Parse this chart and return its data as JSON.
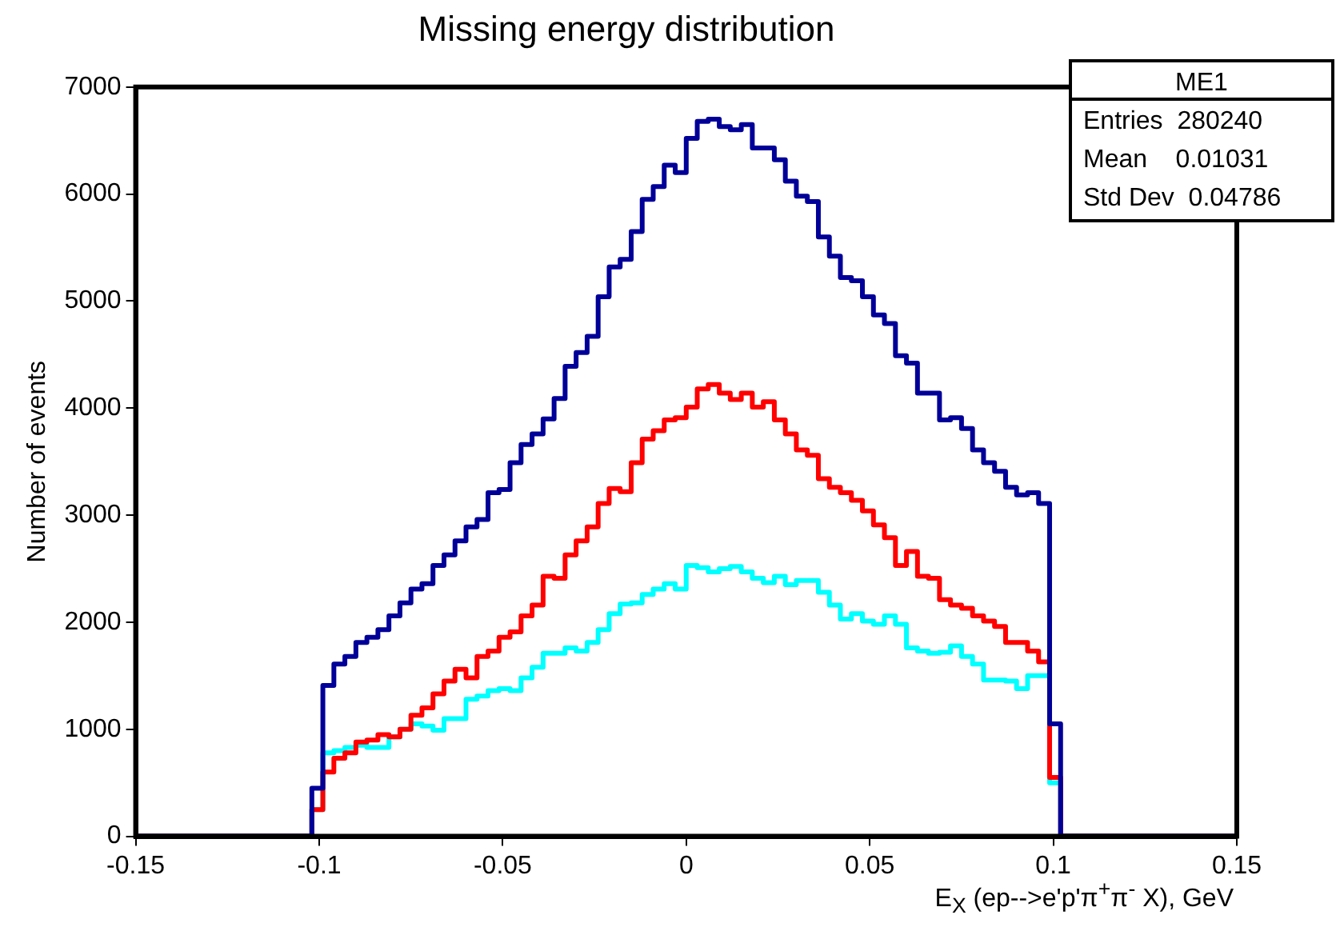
{
  "chart_data": {
    "type": "histogram",
    "title": "Missing energy distribution",
    "xlabel": "E$_{X}$ (ep-->e'p'π$^{+}$π$^{-}$ X), GeV",
    "ylabel": "Number of events",
    "annotations": [
      "ME1",
      "Entries  280240",
      "Mean    0.01031",
      "Std Dev  0.04786"
    ],
    "bins": [
      -0.15,
      -0.147,
      -0.144,
      -0.141,
      -0.138,
      -0.135,
      -0.132,
      -0.129,
      -0.126,
      -0.123,
      -0.12,
      -0.117,
      -0.114,
      -0.111,
      -0.108,
      -0.105,
      -0.102,
      -0.099,
      -0.096,
      -0.093,
      -0.09,
      -0.087,
      -0.084,
      -0.081,
      -0.078,
      -0.075,
      -0.072,
      -0.069,
      -0.066,
      -0.063,
      -0.06,
      -0.057,
      -0.054,
      -0.051,
      -0.048,
      -0.045,
      -0.042,
      -0.039,
      -0.036,
      -0.033,
      -0.03,
      -0.027,
      -0.024,
      -0.021,
      -0.018,
      -0.015,
      -0.012,
      -0.009,
      -0.006,
      -0.003,
      0,
      0.003,
      0.006,
      0.009,
      0.012,
      0.015,
      0.018,
      0.021,
      0.024,
      0.027,
      0.03,
      0.033,
      0.036,
      0.039,
      0.042,
      0.045,
      0.048,
      0.051,
      0.054,
      0.057,
      0.06,
      0.063,
      0.066,
      0.069,
      0.072,
      0.075,
      0.078,
      0.081,
      0.084,
      0.087,
      0.09,
      0.093,
      0.096,
      0.099,
      0.102,
      0.105,
      0.108,
      0.111,
      0.114,
      0.117,
      0.12,
      0.123,
      0.126,
      0.129,
      0.132,
      0.135,
      0.138,
      0.141,
      0.144,
      0.147,
      0.15
    ],
    "series": [
      {
        "color": "#000099",
        "values": [
          0,
          0,
          0,
          0,
          0,
          0,
          0,
          0,
          0,
          0,
          0,
          0,
          0,
          0,
          0,
          0,
          450,
          1410,
          1610,
          1680,
          1810,
          1860,
          1930,
          2060,
          2180,
          2310,
          2360,
          2530,
          2630,
          2760,
          2890,
          2960,
          3210,
          3240,
          3490,
          3660,
          3760,
          3900,
          4090,
          4390,
          4520,
          4670,
          5040,
          5320,
          5390,
          5650,
          5950,
          6070,
          6270,
          6200,
          6520,
          6680,
          6700,
          6630,
          6600,
          6650,
          6430,
          6430,
          6320,
          6120,
          5980,
          5930,
          5600,
          5420,
          5220,
          5190,
          5040,
          4870,
          4790,
          4490,
          4420,
          4140,
          4140,
          3890,
          3910,
          3810,
          3610,
          3490,
          3410,
          3260,
          3190,
          3210,
          3110,
          1050,
          0,
          0,
          0,
          0,
          0,
          0,
          0,
          0,
          0,
          0,
          0,
          0,
          0,
          0,
          0,
          0
        ]
      },
      {
        "color": "#ff0000",
        "values": [
          0,
          0,
          0,
          0,
          0,
          0,
          0,
          0,
          0,
          0,
          0,
          0,
          0,
          0,
          0,
          0,
          250,
          600,
          730,
          780,
          880,
          900,
          950,
          930,
          1000,
          1130,
          1200,
          1330,
          1450,
          1560,
          1480,
          1680,
          1730,
          1860,
          1910,
          2060,
          2160,
          2430,
          2410,
          2630,
          2760,
          2890,
          3110,
          3250,
          3220,
          3490,
          3710,
          3790,
          3890,
          3910,
          4010,
          4180,
          4220,
          4140,
          4080,
          4140,
          4010,
          4060,
          3890,
          3760,
          3610,
          3560,
          3340,
          3260,
          3210,
          3140,
          3040,
          2910,
          2790,
          2530,
          2660,
          2430,
          2410,
          2210,
          2160,
          2130,
          2060,
          2010,
          1960,
          1810,
          1810,
          1730,
          1630,
          550,
          0,
          0,
          0,
          0,
          0,
          0,
          0,
          0,
          0,
          0,
          0,
          0,
          0,
          0,
          0,
          0
        ]
      },
      {
        "color": "#00ffff",
        "values": [
          0,
          0,
          0,
          0,
          0,
          0,
          0,
          0,
          0,
          0,
          0,
          0,
          0,
          0,
          0,
          0,
          250,
          780,
          800,
          830,
          850,
          830,
          830,
          930,
          1000,
          1050,
          1030,
          990,
          1100,
          1100,
          1280,
          1310,
          1360,
          1380,
          1360,
          1480,
          1580,
          1710,
          1710,
          1760,
          1730,
          1810,
          1930,
          2080,
          2170,
          2180,
          2260,
          2310,
          2360,
          2310,
          2530,
          2510,
          2470,
          2500,
          2520,
          2470,
          2410,
          2370,
          2430,
          2350,
          2390,
          2390,
          2280,
          2160,
          2030,
          2080,
          2010,
          1980,
          2060,
          1980,
          1760,
          1730,
          1710,
          1720,
          1780,
          1680,
          1610,
          1460,
          1460,
          1450,
          1380,
          1500,
          1500,
          500,
          0,
          0,
          0,
          0,
          0,
          0,
          0,
          0,
          0,
          0,
          0,
          0,
          0,
          0,
          0,
          0
        ]
      }
    ],
    "xlim": [
      -0.15,
      0.15
    ],
    "xticks": [
      -0.15,
      -0.1,
      -0.05,
      0,
      0.05,
      0.1,
      0.15
    ],
    "ylim": [
      0,
      7000
    ],
    "yticks": [
      0,
      1000,
      2000,
      3000,
      4000,
      5000,
      6000,
      7000
    ]
  }
}
